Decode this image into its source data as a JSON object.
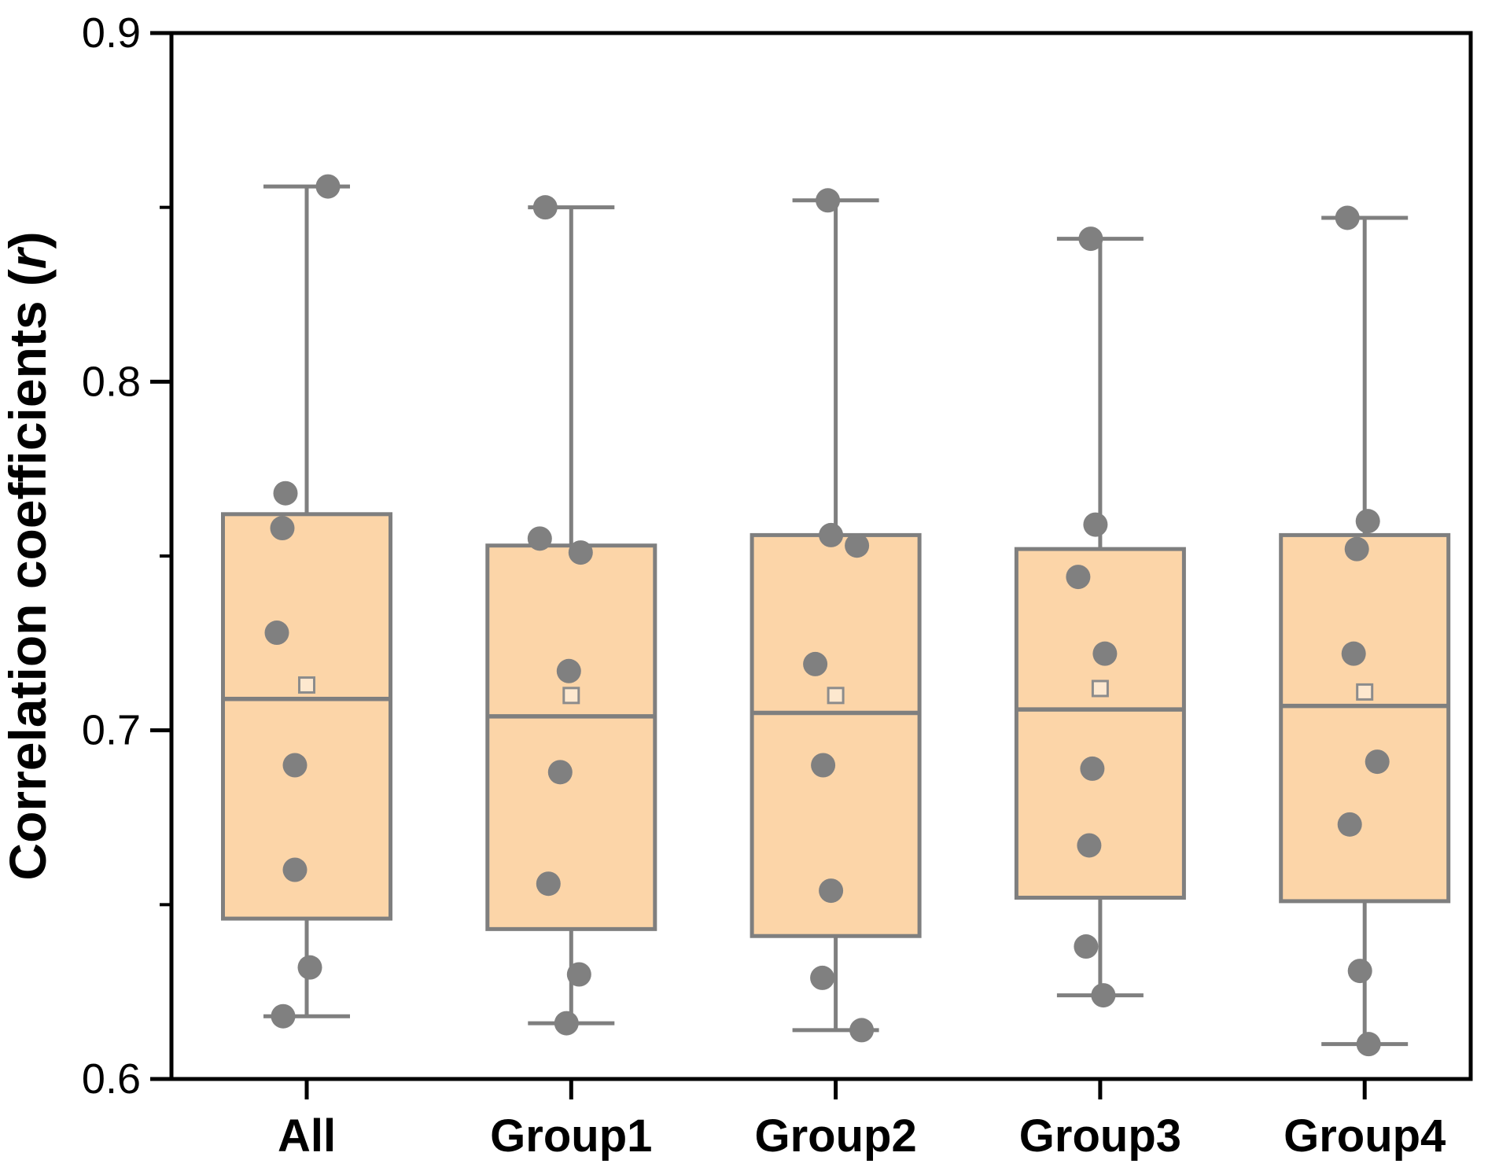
{
  "chart_data": {
    "type": "box",
    "title": "",
    "ylabel": "Correlation coefficients (r)",
    "ylabel_parts": {
      "prefix": "Correlation coefficients (",
      "italic": "r",
      "suffix": ")"
    },
    "xlabel": "",
    "ylim": [
      0.6,
      0.9
    ],
    "ytick_values": [
      0.9,
      0.8,
      0.7,
      0.6
    ],
    "ytick_labels": [
      "0.9",
      "0.8",
      "0.7",
      "0.6"
    ],
    "ytick_minor": [
      0.85,
      0.75,
      0.65
    ],
    "grid": false,
    "legend": false,
    "categories": [
      "All",
      "Group1",
      "Group2",
      "Group3",
      "Group4"
    ],
    "series": [
      {
        "name": "All",
        "whisker_low": 0.618,
        "q1": 0.646,
        "median": 0.709,
        "mean": 0.713,
        "q3": 0.762,
        "whisker_high": 0.856,
        "points": [
          {
            "v": 0.856,
            "dx": 27
          },
          {
            "v": 0.768,
            "dx": -27
          },
          {
            "v": 0.758,
            "dx": -31
          },
          {
            "v": 0.728,
            "dx": -38
          },
          {
            "v": 0.69,
            "dx": -15
          },
          {
            "v": 0.66,
            "dx": -15
          },
          {
            "v": 0.632,
            "dx": 4
          },
          {
            "v": 0.618,
            "dx": -30
          }
        ]
      },
      {
        "name": "Group1",
        "whisker_low": 0.616,
        "q1": 0.643,
        "median": 0.704,
        "mean": 0.71,
        "q3": 0.753,
        "whisker_high": 0.85,
        "points": [
          {
            "v": 0.85,
            "dx": -33
          },
          {
            "v": 0.755,
            "dx": -40
          },
          {
            "v": 0.751,
            "dx": 12
          },
          {
            "v": 0.717,
            "dx": -3
          },
          {
            "v": 0.688,
            "dx": -14
          },
          {
            "v": 0.656,
            "dx": -29
          },
          {
            "v": 0.63,
            "dx": 10
          },
          {
            "v": 0.616,
            "dx": -6
          }
        ]
      },
      {
        "name": "Group2",
        "whisker_low": 0.614,
        "q1": 0.641,
        "median": 0.705,
        "mean": 0.71,
        "q3": 0.756,
        "whisker_high": 0.852,
        "points": [
          {
            "v": 0.852,
            "dx": -10
          },
          {
            "v": 0.756,
            "dx": -6
          },
          {
            "v": 0.753,
            "dx": 27
          },
          {
            "v": 0.719,
            "dx": -26
          },
          {
            "v": 0.69,
            "dx": -16
          },
          {
            "v": 0.654,
            "dx": -6
          },
          {
            "v": 0.629,
            "dx": -17
          },
          {
            "v": 0.614,
            "dx": 33
          }
        ]
      },
      {
        "name": "Group3",
        "whisker_low": 0.624,
        "q1": 0.652,
        "median": 0.706,
        "mean": 0.712,
        "q3": 0.752,
        "whisker_high": 0.841,
        "points": [
          {
            "v": 0.841,
            "dx": -12
          },
          {
            "v": 0.759,
            "dx": -6
          },
          {
            "v": 0.744,
            "dx": -28
          },
          {
            "v": 0.722,
            "dx": 6
          },
          {
            "v": 0.689,
            "dx": -10
          },
          {
            "v": 0.667,
            "dx": -14
          },
          {
            "v": 0.638,
            "dx": -18
          },
          {
            "v": 0.624,
            "dx": 4
          }
        ]
      },
      {
        "name": "Group4",
        "whisker_low": 0.61,
        "q1": 0.651,
        "median": 0.707,
        "mean": 0.711,
        "q3": 0.756,
        "whisker_high": 0.847,
        "points": [
          {
            "v": 0.847,
            "dx": -22
          },
          {
            "v": 0.76,
            "dx": 4
          },
          {
            "v": 0.752,
            "dx": -10
          },
          {
            "v": 0.722,
            "dx": -14
          },
          {
            "v": 0.691,
            "dx": 16
          },
          {
            "v": 0.673,
            "dx": -19
          },
          {
            "v": 0.631,
            "dx": -6
          },
          {
            "v": 0.61,
            "dx": 5
          }
        ]
      }
    ],
    "colors": {
      "box_fill": "#FCD5A8",
      "box_stroke": "#7F7F7F",
      "whisker": "#7F7F7F",
      "median": "#7F7F7F",
      "mean_marker_stroke": "#8C8C8C",
      "point_fill": "#808080",
      "axis": "#000000",
      "background": "#FFFFFF"
    }
  }
}
